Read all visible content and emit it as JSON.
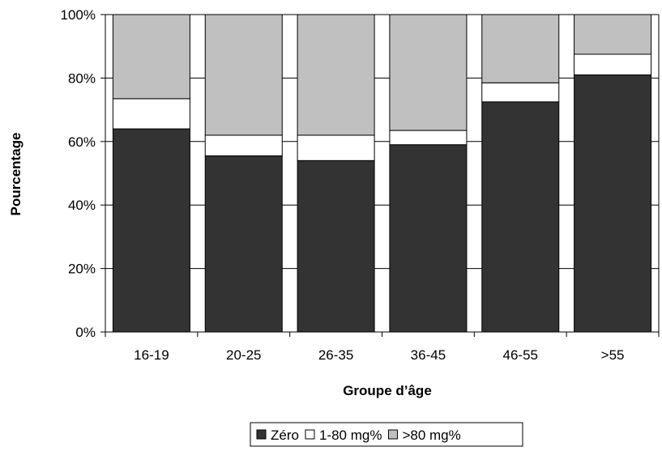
{
  "chart_data": {
    "type": "bar",
    "stacked": true,
    "title": "",
    "xlabel": "Groupe d’âge",
    "ylabel": "Pourcentage",
    "categories": [
      "16-19",
      "20-25",
      "26-35",
      "36-45",
      "46-55",
      ">55"
    ],
    "series": [
      {
        "name": "Zéro",
        "color": "#333333",
        "values": [
          64,
          55.5,
          54,
          59,
          72.5,
          81
        ]
      },
      {
        "name": "1-80 mg%",
        "color": "#ffffff",
        "values": [
          9.5,
          6.5,
          8,
          4.5,
          6,
          6.5
        ]
      },
      {
        "name": ">80 mg%",
        "color": "#c0c0c0",
        "values": [
          26.5,
          38,
          38,
          36.5,
          21.5,
          12.5
        ]
      }
    ],
    "ylim": [
      0,
      100
    ],
    "yticks": [
      "0%",
      "20%",
      "40%",
      "60%",
      "80%",
      "100%"
    ],
    "ytick_values": [
      0,
      20,
      40,
      60,
      80,
      100
    ],
    "grid": true,
    "legend_position": "bottom"
  }
}
